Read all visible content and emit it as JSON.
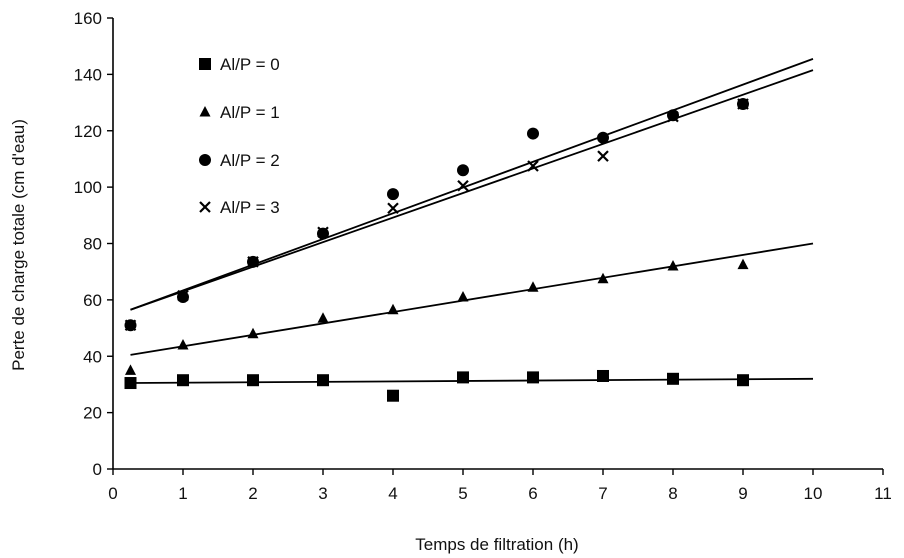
{
  "chart_data": {
    "type": "scatter",
    "title": "",
    "xlabel": "Temps de filtration (h)",
    "ylabel": "Perte de charge totale (cm d'eau)",
    "xlim": [
      0,
      11
    ],
    "ylim": [
      0,
      160
    ],
    "xticks": [
      "0",
      "1",
      "2",
      "3",
      "4",
      "5",
      "6",
      "7",
      "8",
      "9",
      "10",
      "11"
    ],
    "yticks": [
      "0",
      "20",
      "40",
      "60",
      "80",
      "100",
      "120",
      "140",
      "160"
    ],
    "grid": false,
    "legend_position": "top-left",
    "series": [
      {
        "name": "Al/P = 0",
        "marker": "square",
        "x": [
          0.25,
          1,
          2,
          3,
          4,
          5,
          6,
          7,
          8,
          9
        ],
        "y": [
          30.5,
          31.5,
          31.5,
          31.5,
          26,
          32.5,
          32.5,
          33,
          32,
          31.5
        ],
        "trendline": {
          "x": [
            0.25,
            10
          ],
          "y": [
            30.5,
            32
          ]
        }
      },
      {
        "name": "Al/P = 1",
        "marker": "triangle",
        "x": [
          0.25,
          1,
          2,
          3,
          4,
          5,
          6,
          7,
          8,
          9
        ],
        "y": [
          35,
          44,
          48,
          53.5,
          56.5,
          61,
          64.5,
          67.5,
          72,
          72.5
        ],
        "trendline": {
          "x": [
            0.25,
            10
          ],
          "y": [
            40.5,
            80
          ]
        }
      },
      {
        "name": "Al/P = 2",
        "marker": "circle",
        "x": [
          0.25,
          1,
          2,
          3,
          4,
          5,
          6,
          7,
          8,
          9
        ],
        "y": [
          51,
          61,
          73.5,
          83.5,
          97.5,
          106,
          119,
          117.5,
          125.5,
          129.5
        ],
        "trendline": {
          "x": [
            0.25,
            10
          ],
          "y": [
            56.5,
            145.5
          ]
        }
      },
      {
        "name": "Al/P = 3",
        "marker": "cross",
        "x": [
          0.25,
          1,
          2,
          3,
          4,
          5,
          6,
          7,
          8,
          9
        ],
        "y": [
          51,
          61.5,
          73.5,
          84,
          92.5,
          100.5,
          107.5,
          111,
          125,
          129.5
        ],
        "trendline": {
          "x": [
            0.25,
            10
          ],
          "y": [
            56.5,
            141.5
          ]
        }
      }
    ]
  }
}
